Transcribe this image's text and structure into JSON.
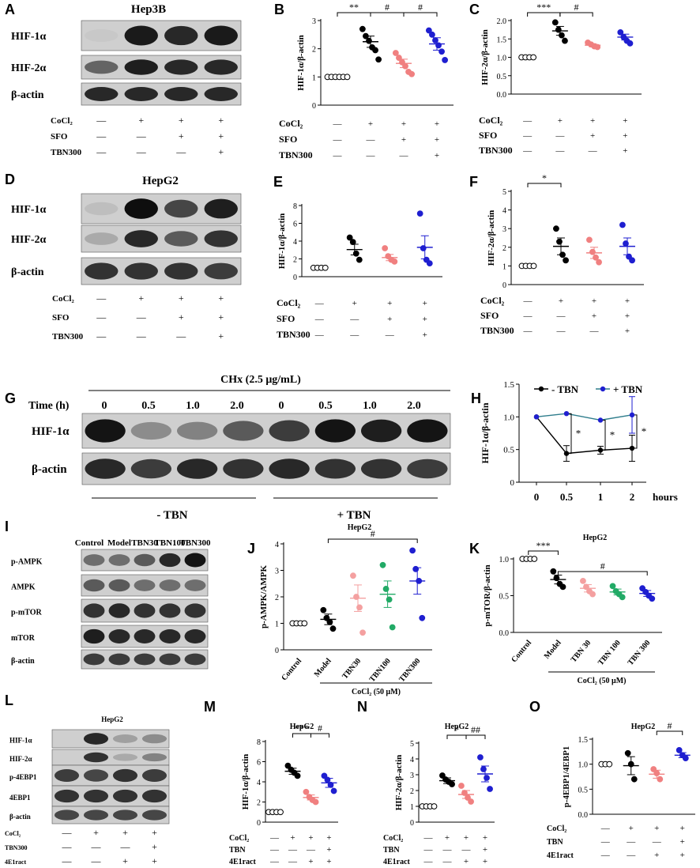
{
  "panels": {
    "A": {
      "letter": "A",
      "title": "Hep3B",
      "bands": [
        "HIF-1α",
        "HIF-2α",
        "β-actin"
      ],
      "conditions": [
        [
          "CoCl₂",
          [
            "—",
            "+",
            "+",
            "+"
          ]
        ],
        [
          "SFO",
          [
            "—",
            "—",
            "+",
            "+"
          ]
        ],
        [
          "TBN300",
          [
            "—",
            "—",
            "—",
            "+"
          ]
        ]
      ]
    },
    "D": {
      "letter": "D",
      "title": "HepG2",
      "bands": [
        "HIF-1α",
        "HIF-2α",
        "β-actin"
      ],
      "conditions": [
        [
          "CoCl₂",
          [
            "—",
            "+",
            "+",
            "+"
          ]
        ],
        [
          "SFO",
          [
            "—",
            "—",
            "+",
            "+"
          ]
        ],
        [
          "TBN300",
          [
            "—",
            "—",
            "—",
            "+"
          ]
        ]
      ]
    },
    "G": {
      "letter": "G",
      "treatment": "CHx (2.5 μg/mL)",
      "time_label": "Time (h)",
      "times": [
        "0",
        "0.5",
        "1.0",
        "2.0",
        "0",
        "0.5",
        "1.0",
        "2.0"
      ],
      "bands": [
        "HIF-1α",
        "β-actin"
      ],
      "groups": [
        "- TBN",
        "+ TBN"
      ]
    },
    "I": {
      "letter": "I",
      "lanes": [
        "Control",
        "Model",
        "TBN30",
        "TBN100",
        "TBN300"
      ],
      "bands": [
        "p-AMPK",
        "AMPK",
        "p-mTOR",
        "mTOR",
        "β-actin"
      ]
    },
    "L": {
      "letter": "L",
      "title": "HepG2",
      "bands": [
        "HIF-1α",
        "HIF-2α",
        "p-4EBP1",
        "4EBP1",
        "β-actin"
      ],
      "conditions": [
        [
          "CoCl₂",
          [
            "—",
            "+",
            "+",
            "+"
          ]
        ],
        [
          "TBN300",
          [
            "—",
            "—",
            "—",
            "+"
          ]
        ],
        [
          "4E1ract",
          [
            "—",
            "—",
            "+",
            "+"
          ]
        ]
      ]
    }
  },
  "chart_data": [
    {
      "id": "B",
      "type": "scatter",
      "ylabel": "HIF-1α/β-actin",
      "ylim": [
        0,
        3
      ],
      "yticks": [
        0,
        1,
        2,
        3
      ],
      "groups": [
        {
          "color": "#000000",
          "hollow": true,
          "mean": 1.0,
          "sem": 0,
          "points": [
            1,
            1,
            1,
            1,
            1,
            1
          ]
        },
        {
          "color": "#000000",
          "mean": 2.25,
          "sem": 0.2,
          "points": [
            2.7,
            2.45,
            2.28,
            2.05,
            1.95,
            1.62
          ]
        },
        {
          "color": "#f08080",
          "mean": 1.48,
          "sem": 0.15,
          "points": [
            1.85,
            1.68,
            1.52,
            1.38,
            1.18,
            1.1
          ]
        },
        {
          "color": "#1f1fd0",
          "mean": 2.17,
          "sem": 0.22,
          "points": [
            2.65,
            2.5,
            2.3,
            2.12,
            1.9,
            1.6
          ]
        }
      ],
      "sig": [
        {
          "from": 0,
          "to": 1,
          "text": "**"
        },
        {
          "from": 1,
          "to": 2,
          "text": "#"
        },
        {
          "from": 2,
          "to": 3,
          "text": "#"
        }
      ],
      "conditions": [
        [
          "CoCl₂",
          [
            "—",
            "+",
            "+",
            "+"
          ]
        ],
        [
          "SFO",
          [
            "—",
            "—",
            "+",
            "+"
          ]
        ],
        [
          "TBN300",
          [
            "—",
            "—",
            "—",
            "+"
          ]
        ]
      ]
    },
    {
      "id": "C",
      "type": "scatter",
      "ylabel": "HIF-2α/β-actin",
      "ylim": [
        0,
        2.0
      ],
      "yticks": [
        0,
        0.5,
        1.0,
        1.5,
        2.0
      ],
      "groups": [
        {
          "color": "#000000",
          "hollow": true,
          "mean": 1.0,
          "sem": 0,
          "points": [
            1,
            1,
            1,
            1
          ]
        },
        {
          "color": "#000000",
          "mean": 1.72,
          "sem": 0.12,
          "points": [
            1.95,
            1.75,
            1.6,
            1.45
          ]
        },
        {
          "color": "#f08080",
          "mean": 1.33,
          "sem": 0.04,
          "points": [
            1.4,
            1.35,
            1.3,
            1.28
          ]
        },
        {
          "color": "#1f1fd0",
          "mean": 1.55,
          "sem": 0.08,
          "points": [
            1.68,
            1.55,
            1.45,
            1.38
          ]
        }
      ],
      "sig": [
        {
          "from": 0,
          "to": 1,
          "text": "***"
        },
        {
          "from": 1,
          "to": 2,
          "text": "#"
        }
      ],
      "conditions": [
        [
          "CoCl₂",
          [
            "—",
            "+",
            "+",
            "+"
          ]
        ],
        [
          "SFO",
          [
            "—",
            "—",
            "+",
            "+"
          ]
        ],
        [
          "TBN300",
          [
            "—",
            "—",
            "—",
            "+"
          ]
        ]
      ]
    },
    {
      "id": "E",
      "type": "scatter",
      "ylabel": "HIF-1α/β-actin",
      "ylim": [
        0,
        8
      ],
      "yticks": [
        0,
        2,
        4,
        6,
        8
      ],
      "groups": [
        {
          "color": "#000000",
          "hollow": true,
          "mean": 1.0,
          "sem": 0,
          "points": [
            1,
            1,
            1,
            1
          ]
        },
        {
          "color": "#000000",
          "mean": 3.05,
          "sem": 0.6,
          "points": [
            4.4,
            3.9,
            2.6,
            1.9
          ]
        },
        {
          "color": "#f08080",
          "mean": 2.15,
          "sem": 0.35,
          "points": [
            3.2,
            2.3,
            1.9,
            1.7
          ]
        },
        {
          "color": "#1f1fd0",
          "mean": 3.3,
          "sem": 1.3,
          "points": [
            7.1,
            3.2,
            1.9,
            1.5
          ]
        }
      ],
      "sig": [],
      "conditions": [
        [
          "CoCl₂",
          [
            "—",
            "+",
            "+",
            "+"
          ]
        ],
        [
          "SFO",
          [
            "—",
            "—",
            "+",
            "+"
          ]
        ],
        [
          "TBN300",
          [
            "—",
            "—",
            "—",
            "+"
          ]
        ]
      ]
    },
    {
      "id": "F",
      "type": "scatter",
      "ylabel": "HIF-2α/β-actin",
      "ylim": [
        0,
        5
      ],
      "yticks": [
        0,
        1,
        2,
        3,
        4,
        5
      ],
      "groups": [
        {
          "color": "#000000",
          "hollow": true,
          "mean": 1.0,
          "sem": 0,
          "points": [
            1,
            1,
            1,
            1
          ]
        },
        {
          "color": "#000000",
          "mean": 2.05,
          "sem": 0.45,
          "points": [
            3.0,
            2.3,
            1.6,
            1.3
          ]
        },
        {
          "color": "#f08080",
          "mean": 1.7,
          "sem": 0.3,
          "points": [
            2.4,
            1.75,
            1.45,
            1.2
          ]
        },
        {
          "color": "#1f1fd0",
          "mean": 2.05,
          "sem": 0.45,
          "points": [
            3.2,
            2.2,
            1.5,
            1.3
          ]
        }
      ],
      "sig": [
        {
          "from": 0,
          "to": 1,
          "text": "*"
        }
      ],
      "conditions": [
        [
          "CoCl₂",
          [
            "—",
            "+",
            "+",
            "+"
          ]
        ],
        [
          "SFO",
          [
            "—",
            "—",
            "+",
            "+"
          ]
        ],
        [
          "TBN300",
          [
            "—",
            "—",
            "—",
            "+"
          ]
        ]
      ]
    },
    {
      "id": "H",
      "type": "line",
      "ylabel": "HIF-1α/β-actin",
      "xlabel": "hours",
      "x": [
        0,
        0.5,
        1,
        2
      ],
      "xticks": [
        "0",
        "0.5",
        "1",
        "2"
      ],
      "ylim": [
        0,
        1.5
      ],
      "yticks": [
        0,
        0.5,
        1.0,
        1.5
      ],
      "series": [
        {
          "name": "- TBN",
          "color": "#000000",
          "values": [
            1.0,
            0.44,
            0.49,
            0.52
          ],
          "err": [
            0,
            0.12,
            0.06,
            0.2
          ]
        },
        {
          "name": "+ TBN",
          "color": "#1f1fd0",
          "values": [
            1.0,
            1.05,
            0.95,
            1.03
          ],
          "err": [
            0,
            0,
            0,
            0.28
          ]
        }
      ],
      "sig": [
        "*",
        "*",
        "*"
      ]
    },
    {
      "id": "J",
      "type": "scatter",
      "title": "HepG2",
      "ylabel": "p-AMPK/AMPK",
      "ylim": [
        0,
        4
      ],
      "yticks": [
        0,
        1,
        2,
        3,
        4
      ],
      "categories": [
        "Control",
        "Model",
        "TBN30",
        "TBN100",
        "TBN300"
      ],
      "bracket_label": "CoCl₂ (50 μM)",
      "groups": [
        {
          "color": "#000000",
          "hollow": true,
          "mean": 1.0,
          "sem": 0,
          "points": [
            1,
            1,
            1,
            1
          ]
        },
        {
          "color": "#000000",
          "mean": 1.15,
          "sem": 0.2,
          "points": [
            1.5,
            1.2,
            1.05,
            0.8
          ]
        },
        {
          "color": "#f4a0a0",
          "mean": 1.95,
          "sem": 0.5,
          "points": [
            2.8,
            2.0,
            1.6,
            0.65
          ]
        },
        {
          "color": "#22aa66",
          "mean": 2.1,
          "sem": 0.5,
          "points": [
            3.2,
            2.3,
            1.9,
            0.85
          ]
        },
        {
          "color": "#1f1fd0",
          "mean": 2.6,
          "sem": 0.5,
          "points": [
            3.75,
            3.05,
            2.6,
            1.2
          ]
        }
      ],
      "sig": [
        {
          "from": 1,
          "to": 4,
          "text": "#"
        }
      ]
    },
    {
      "id": "K",
      "type": "scatter",
      "title": "HepG2",
      "ylabel": "p-mTOR/β-actin",
      "ylim": [
        0,
        1.0
      ],
      "yticks": [
        0,
        0.5,
        1.0
      ],
      "categories": [
        "Control",
        "Model",
        "TBN 30",
        "TBN 100",
        "TBN 300"
      ],
      "bracket_label": "CoCl₂ (50 μM)",
      "groups": [
        {
          "color": "#000000",
          "hollow": true,
          "mean": 1.0,
          "sem": 0,
          "points": [
            1,
            1,
            1,
            1
          ]
        },
        {
          "color": "#000000",
          "mean": 0.72,
          "sem": 0.06,
          "points": [
            0.83,
            0.74,
            0.66,
            0.62
          ]
        },
        {
          "color": "#f4a0a0",
          "mean": 0.6,
          "sem": 0.05,
          "points": [
            0.7,
            0.62,
            0.56,
            0.52
          ]
        },
        {
          "color": "#22aa66",
          "mean": 0.55,
          "sem": 0.04,
          "points": [
            0.63,
            0.56,
            0.52,
            0.48
          ]
        },
        {
          "color": "#1f1fd0",
          "mean": 0.53,
          "sem": 0.04,
          "points": [
            0.6,
            0.55,
            0.5,
            0.46
          ]
        }
      ],
      "sig": [
        {
          "from": 0,
          "to": 1,
          "text": "***"
        },
        {
          "from": 1,
          "to": 4,
          "text": "#"
        }
      ]
    },
    {
      "id": "M",
      "type": "scatter",
      "title": "HepG2",
      "ylabel": "HIF-1α/β-actin",
      "ylim": [
        0,
        8
      ],
      "yticks": [
        0,
        2,
        4,
        6,
        8
      ],
      "groups": [
        {
          "color": "#000000",
          "hollow": true,
          "mean": 1.0,
          "sem": 0,
          "points": [
            1,
            1,
            1,
            1
          ]
        },
        {
          "color": "#000000",
          "mean": 5.05,
          "sem": 0.3,
          "points": [
            5.6,
            5.2,
            4.9,
            4.6
          ]
        },
        {
          "color": "#f08080",
          "mean": 2.45,
          "sem": 0.25,
          "points": [
            3.0,
            2.5,
            2.2,
            2.0
          ]
        },
        {
          "color": "#1f1fd0",
          "mean": 3.9,
          "sem": 0.45,
          "points": [
            4.6,
            4.2,
            3.7,
            3.1
          ]
        }
      ],
      "sig": [
        {
          "from": 1,
          "to": 2,
          "text": "***"
        },
        {
          "from": 2,
          "to": 3,
          "text": "#"
        }
      ],
      "conditions": [
        [
          "CoCl₂",
          [
            "—",
            "+",
            "+",
            "+"
          ]
        ],
        [
          "TBN",
          [
            "—",
            "—",
            "—",
            "+"
          ]
        ],
        [
          "4E1ract",
          [
            "—",
            "—",
            "+",
            "+"
          ]
        ]
      ]
    },
    {
      "id": "N",
      "type": "scatter",
      "title": "HepG2",
      "ylabel": "HIF-2α/β-actin",
      "ylim": [
        0,
        5
      ],
      "yticks": [
        0,
        1,
        2,
        3,
        4,
        5
      ],
      "groups": [
        {
          "color": "#000000",
          "hollow": true,
          "mean": 1.0,
          "sem": 0,
          "points": [
            1,
            1,
            1,
            1
          ]
        },
        {
          "color": "#000000",
          "mean": 2.62,
          "sem": 0.18,
          "points": [
            2.95,
            2.7,
            2.55,
            2.4
          ]
        },
        {
          "color": "#f08080",
          "mean": 1.75,
          "sem": 0.25,
          "points": [
            2.3,
            1.85,
            1.55,
            1.3
          ]
        },
        {
          "color": "#1f1fd0",
          "mean": 3.05,
          "sem": 0.5,
          "points": [
            4.1,
            3.35,
            2.8,
            2.1
          ]
        }
      ],
      "sig": [
        {
          "from": 1,
          "to": 2,
          "text": "*"
        },
        {
          "from": 2,
          "to": 3,
          "text": "##"
        }
      ],
      "conditions": [
        [
          "CoCl₂",
          [
            "—",
            "+",
            "+",
            "+"
          ]
        ],
        [
          "TBN",
          [
            "—",
            "—",
            "—",
            "+"
          ]
        ],
        [
          "4E1ract",
          [
            "—",
            "—",
            "+",
            "+"
          ]
        ]
      ]
    },
    {
      "id": "O",
      "type": "scatter",
      "title": "HepG2",
      "ylabel": "p-4EBP1/4EBP1",
      "ylim": [
        0,
        1.5
      ],
      "yticks": [
        0,
        0.5,
        1.0,
        1.5
      ],
      "groups": [
        {
          "color": "#000000",
          "hollow": true,
          "mean": 1.0,
          "sem": 0,
          "points": [
            1,
            1,
            1
          ]
        },
        {
          "color": "#000000",
          "mean": 0.97,
          "sem": 0.18,
          "points": [
            1.22,
            1.0,
            0.7
          ]
        },
        {
          "color": "#f08080",
          "mean": 0.8,
          "sem": 0.08,
          "points": [
            0.9,
            0.82,
            0.7
          ]
        },
        {
          "color": "#1f1fd0",
          "mean": 1.18,
          "sem": 0.05,
          "points": [
            1.28,
            1.18,
            1.12
          ]
        }
      ],
      "sig": [
        {
          "from": 2,
          "to": 3,
          "text": "#"
        }
      ],
      "conditions": [
        [
          "CoCl₂",
          [
            "—",
            "+",
            "+",
            "+"
          ]
        ],
        [
          "TBN",
          [
            "—",
            "—",
            "—",
            "+"
          ]
        ],
        [
          "4E1ract",
          [
            "—",
            "—",
            "+",
            "+"
          ]
        ]
      ]
    }
  ]
}
